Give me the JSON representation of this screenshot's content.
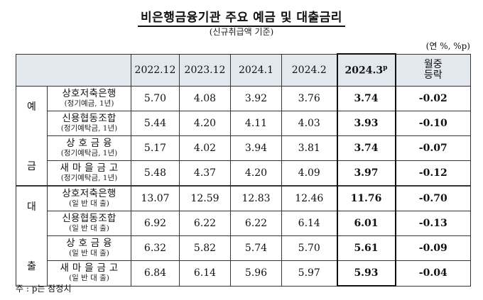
{
  "title": "비은행금융기관 주요 예금 및 대출금리",
  "subtitle": "(신규취급액 기준)",
  "unit": "(연 %, %p)",
  "columns": [
    "2022.12",
    "2023.12",
    "2024.1",
    "2024.2"
  ],
  "latest_column": {
    "label": "2024.3",
    "sup": "p"
  },
  "change_column": {
    "line1": "월중",
    "line2": "등락"
  },
  "groups": [
    {
      "label_top": "예",
      "label_bottom": "금",
      "rows": [
        {
          "name": "상호저축은행",
          "sub": "(정기예금, 1년)",
          "values": [
            "5.70",
            "4.08",
            "3.92",
            "3.76"
          ],
          "latest": "3.74",
          "change": "-0.02"
        },
        {
          "name": "신용협동조합",
          "sub": "(정기예탁금, 1년)",
          "values": [
            "5.44",
            "4.20",
            "4.11",
            "4.03"
          ],
          "latest": "3.93",
          "change": "-0.10"
        },
        {
          "name": "상 호 금 융",
          "sub": "(정기예탁금, 1년)",
          "values": [
            "5.17",
            "4.02",
            "3.94",
            "3.81"
          ],
          "latest": "3.74",
          "change": "-0.07"
        },
        {
          "name": "새 마 을 금 고",
          "sub": "(정기예탁금, 1년)",
          "values": [
            "5.48",
            "4.37",
            "4.20",
            "4.09"
          ],
          "latest": "3.97",
          "change": "-0.12"
        }
      ]
    },
    {
      "label_top": "대",
      "label_bottom": "출",
      "rows": [
        {
          "name": "상호저축은행",
          "sub": "(일 반 대 출)",
          "values": [
            "13.07",
            "12.59",
            "12.83",
            "12.46"
          ],
          "latest": "11.76",
          "change": "-0.70"
        },
        {
          "name": "신용협동조합",
          "sub": "(일 반 대 출)",
          "values": [
            "6.92",
            "6.22",
            "6.22",
            "6.14"
          ],
          "latest": "6.01",
          "change": "-0.13"
        },
        {
          "name": "상 호 금 융",
          "sub": "(일 반 대 출)",
          "values": [
            "6.32",
            "5.82",
            "5.74",
            "5.70"
          ],
          "latest": "5.61",
          "change": "-0.09"
        },
        {
          "name": "새 마 을 금 고",
          "sub": "(일 반 대 출)",
          "values": [
            "6.84",
            "6.14",
            "5.96",
            "5.97"
          ],
          "latest": "5.93",
          "change": "-0.04"
        }
      ]
    }
  ],
  "note": "주 : p는 잠정치"
}
